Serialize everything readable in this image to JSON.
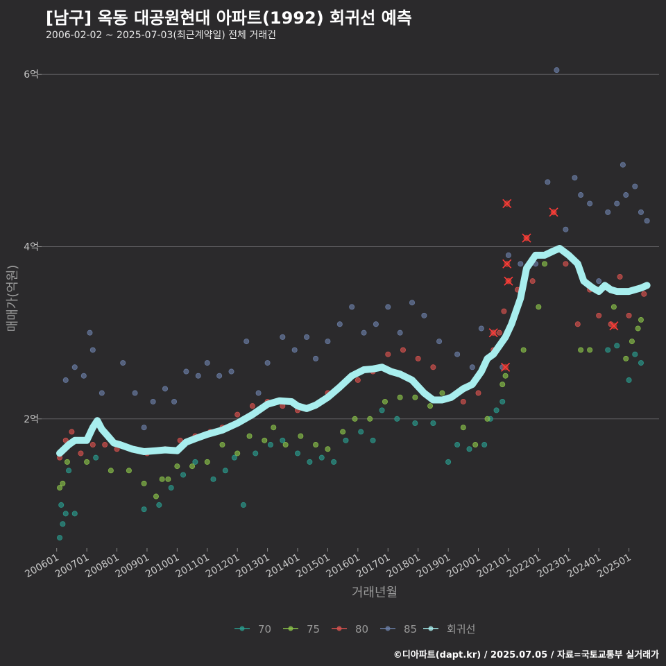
{
  "header": {
    "title": "[남구] 옥동 대공원현대 아파트(1992) 회귀선 예측",
    "subtitle": "2006-02-02 ~ 2025-07-03(최근계약일) 전체 거래건"
  },
  "credit": "©디아파트(dapt.kr) / 2025.07.05 / 자료=국토교통부 실거래가",
  "chart_data": {
    "type": "scatter",
    "xlabel": "거래년월",
    "ylabel": "매매가(억원)",
    "x_tick_labels": [
      "200601",
      "200701",
      "200801",
      "200901",
      "201001",
      "201101",
      "201201",
      "201301",
      "201401",
      "201501",
      "201601",
      "201701",
      "201801",
      "201901",
      "202001",
      "202101",
      "202201",
      "202301",
      "202401",
      "202501"
    ],
    "y_ticks": [
      {
        "value": 2,
        "label": "2억"
      },
      {
        "value": 4,
        "label": "4억"
      },
      {
        "value": 6,
        "label": "6억"
      }
    ],
    "ylim": [
      0.5,
      6.3
    ],
    "xlim": [
      2005.5,
      2026.0
    ],
    "grid": "horizontal",
    "legend_position": "bottom",
    "colors": {
      "70": "#2a9d8f",
      "75": "#8bc34a",
      "80": "#d9534f",
      "85": "#6b7fa8",
      "trend": "#a8eeee"
    },
    "series": [
      {
        "name": "70",
        "color": "#2a9d8f",
        "points": [
          [
            2006.1,
            0.62
          ],
          [
            2006.15,
            1.0
          ],
          [
            2006.2,
            0.78
          ],
          [
            2006.3,
            0.9
          ],
          [
            2006.4,
            1.4
          ],
          [
            2006.6,
            0.9
          ],
          [
            2007.3,
            1.55
          ],
          [
            2008.9,
            0.95
          ],
          [
            2009.4,
            1.0
          ],
          [
            2009.8,
            1.2
          ],
          [
            2010.2,
            1.35
          ],
          [
            2010.6,
            1.5
          ],
          [
            2011.2,
            1.3
          ],
          [
            2011.6,
            1.4
          ],
          [
            2011.9,
            1.55
          ],
          [
            2012.2,
            1.0
          ],
          [
            2012.6,
            1.6
          ],
          [
            2013.1,
            1.7
          ],
          [
            2013.5,
            1.75
          ],
          [
            2014.0,
            1.6
          ],
          [
            2014.4,
            1.5
          ],
          [
            2014.8,
            1.55
          ],
          [
            2015.2,
            1.5
          ],
          [
            2015.6,
            1.75
          ],
          [
            2016.1,
            1.85
          ],
          [
            2016.5,
            1.75
          ],
          [
            2016.8,
            2.1
          ],
          [
            2017.3,
            2.0
          ],
          [
            2017.9,
            1.95
          ],
          [
            2018.5,
            1.95
          ],
          [
            2019.0,
            1.5
          ],
          [
            2019.3,
            1.7
          ],
          [
            2019.7,
            1.65
          ],
          [
            2020.2,
            1.7
          ],
          [
            2020.4,
            2.0
          ],
          [
            2020.6,
            2.1
          ],
          [
            2020.8,
            2.2
          ],
          [
            2024.3,
            2.8
          ],
          [
            2024.6,
            2.85
          ],
          [
            2025.0,
            2.45
          ],
          [
            2025.2,
            2.75
          ],
          [
            2025.4,
            2.65
          ]
        ]
      },
      {
        "name": "75",
        "color": "#8bc34a",
        "points": [
          [
            2006.1,
            1.2
          ],
          [
            2006.2,
            1.25
          ],
          [
            2006.35,
            1.5
          ],
          [
            2007.0,
            1.5
          ],
          [
            2007.8,
            1.4
          ],
          [
            2008.4,
            1.4
          ],
          [
            2008.9,
            1.25
          ],
          [
            2009.3,
            1.1
          ],
          [
            2009.5,
            1.3
          ],
          [
            2009.7,
            1.3
          ],
          [
            2010.0,
            1.45
          ],
          [
            2010.5,
            1.45
          ],
          [
            2011.0,
            1.5
          ],
          [
            2011.5,
            1.7
          ],
          [
            2012.0,
            1.6
          ],
          [
            2012.4,
            1.8
          ],
          [
            2012.9,
            1.75
          ],
          [
            2013.2,
            1.9
          ],
          [
            2013.6,
            1.7
          ],
          [
            2014.1,
            1.8
          ],
          [
            2014.6,
            1.7
          ],
          [
            2015.0,
            1.65
          ],
          [
            2015.5,
            1.85
          ],
          [
            2015.9,
            2.0
          ],
          [
            2016.4,
            2.0
          ],
          [
            2016.9,
            2.2
          ],
          [
            2017.4,
            2.25
          ],
          [
            2017.9,
            2.25
          ],
          [
            2018.4,
            2.15
          ],
          [
            2018.8,
            2.3
          ],
          [
            2019.5,
            1.9
          ],
          [
            2019.9,
            1.7
          ],
          [
            2020.3,
            2.0
          ],
          [
            2020.8,
            2.4
          ],
          [
            2020.9,
            2.5
          ],
          [
            2021.5,
            2.8
          ],
          [
            2022.0,
            3.3
          ],
          [
            2022.2,
            3.8
          ],
          [
            2023.4,
            2.8
          ],
          [
            2023.7,
            2.8
          ],
          [
            2024.5,
            3.3
          ],
          [
            2024.9,
            2.7
          ],
          [
            2025.1,
            2.9
          ],
          [
            2025.3,
            3.05
          ],
          [
            2025.4,
            3.15
          ]
        ]
      },
      {
        "name": "80",
        "color": "#d9534f",
        "points": [
          [
            2006.1,
            1.55
          ],
          [
            2006.3,
            1.75
          ],
          [
            2006.5,
            1.85
          ],
          [
            2006.8,
            1.6
          ],
          [
            2007.2,
            1.7
          ],
          [
            2007.6,
            1.7
          ],
          [
            2008.0,
            1.65
          ],
          [
            2008.5,
            1.65
          ],
          [
            2009.0,
            1.6
          ],
          [
            2009.6,
            1.65
          ],
          [
            2010.1,
            1.75
          ],
          [
            2010.6,
            1.8
          ],
          [
            2011.1,
            1.85
          ],
          [
            2011.5,
            1.9
          ],
          [
            2012.0,
            2.05
          ],
          [
            2012.5,
            2.15
          ],
          [
            2013.0,
            2.2
          ],
          [
            2013.5,
            2.15
          ],
          [
            2014.0,
            2.1
          ],
          [
            2014.5,
            2.15
          ],
          [
            2015.0,
            2.3
          ],
          [
            2015.5,
            2.4
          ],
          [
            2016.0,
            2.45
          ],
          [
            2016.5,
            2.55
          ],
          [
            2017.0,
            2.75
          ],
          [
            2017.5,
            2.8
          ],
          [
            2018.0,
            2.7
          ],
          [
            2018.5,
            2.6
          ],
          [
            2019.0,
            2.25
          ],
          [
            2019.5,
            2.2
          ],
          [
            2020.0,
            2.3
          ],
          [
            2020.5,
            2.8
          ],
          [
            2020.7,
            3.0
          ],
          [
            2020.85,
            3.25
          ],
          [
            2021.0,
            3.6
          ],
          [
            2021.3,
            3.5
          ],
          [
            2021.6,
            4.1
          ],
          [
            2021.8,
            3.6
          ],
          [
            2022.5,
            4.4
          ],
          [
            2022.9,
            3.8
          ],
          [
            2023.3,
            3.1
          ],
          [
            2023.7,
            3.5
          ],
          [
            2024.0,
            3.2
          ],
          [
            2024.4,
            3.1
          ],
          [
            2024.7,
            3.65
          ],
          [
            2025.0,
            3.2
          ],
          [
            2025.5,
            3.45
          ]
        ]
      },
      {
        "name": "85",
        "color": "#6b7fa8",
        "points": [
          [
            2006.3,
            2.45
          ],
          [
            2006.6,
            2.6
          ],
          [
            2006.9,
            2.5
          ],
          [
            2007.1,
            3.0
          ],
          [
            2007.2,
            2.8
          ],
          [
            2007.5,
            2.3
          ],
          [
            2008.2,
            2.65
          ],
          [
            2008.6,
            2.3
          ],
          [
            2008.9,
            1.9
          ],
          [
            2009.2,
            2.2
          ],
          [
            2009.6,
            2.35
          ],
          [
            2009.9,
            2.2
          ],
          [
            2010.3,
            2.55
          ],
          [
            2010.7,
            2.5
          ],
          [
            2011.0,
            2.65
          ],
          [
            2011.4,
            2.5
          ],
          [
            2011.8,
            2.55
          ],
          [
            2012.3,
            2.9
          ],
          [
            2012.7,
            2.3
          ],
          [
            2013.0,
            2.65
          ],
          [
            2013.5,
            2.95
          ],
          [
            2013.9,
            2.8
          ],
          [
            2014.3,
            2.95
          ],
          [
            2014.6,
            2.7
          ],
          [
            2015.0,
            2.9
          ],
          [
            2015.4,
            3.1
          ],
          [
            2015.8,
            3.3
          ],
          [
            2016.2,
            3.0
          ],
          [
            2016.6,
            3.1
          ],
          [
            2017.0,
            3.3
          ],
          [
            2017.4,
            3.0
          ],
          [
            2017.8,
            3.35
          ],
          [
            2018.2,
            3.2
          ],
          [
            2018.7,
            2.9
          ],
          [
            2019.3,
            2.75
          ],
          [
            2019.8,
            2.6
          ],
          [
            2020.1,
            3.05
          ],
          [
            2020.5,
            3.0
          ],
          [
            2020.8,
            2.6
          ],
          [
            2021.0,
            3.9
          ],
          [
            2021.4,
            3.8
          ],
          [
            2021.9,
            3.8
          ],
          [
            2022.3,
            4.75
          ],
          [
            2022.6,
            6.05
          ],
          [
            2022.9,
            4.2
          ],
          [
            2023.2,
            4.8
          ],
          [
            2023.4,
            4.6
          ],
          [
            2023.7,
            4.5
          ],
          [
            2024.0,
            3.6
          ],
          [
            2024.3,
            4.4
          ],
          [
            2024.6,
            4.5
          ],
          [
            2024.8,
            4.95
          ],
          [
            2024.9,
            4.6
          ],
          [
            2025.2,
            4.7
          ],
          [
            2025.4,
            4.4
          ],
          [
            2025.6,
            4.3
          ]
        ]
      }
    ],
    "markers_x": [
      [
        2020.5,
        3.0
      ],
      [
        2020.9,
        2.6
      ],
      [
        2021.0,
        3.6
      ],
      [
        2020.95,
        4.5
      ],
      [
        2021.6,
        4.1
      ],
      [
        2022.5,
        4.4
      ],
      [
        2024.5,
        3.08
      ],
      [
        2020.95,
        3.8
      ]
    ],
    "trend": {
      "name": "회귀선",
      "x": [
        2006.1,
        2006.4,
        2006.6,
        2007.0,
        2007.2,
        2007.35,
        2007.5,
        2007.7,
        2007.9,
        2008.1,
        2008.5,
        2008.9,
        2009.3,
        2009.6,
        2010.0,
        2010.3,
        2010.6,
        2011.0,
        2011.5,
        2012.0,
        2012.5,
        2013.0,
        2013.4,
        2013.8,
        2014.0,
        2014.3,
        2014.6,
        2015.0,
        2015.4,
        2015.8,
        2016.2,
        2016.5,
        2016.8,
        2017.1,
        2017.4,
        2017.8,
        2018.2,
        2018.5,
        2018.8,
        2019.1,
        2019.5,
        2019.8,
        2020.1,
        2020.3,
        2020.5,
        2020.7,
        2020.9,
        2021.1,
        2021.4,
        2021.6,
        2021.9,
        2022.2,
        2022.5,
        2022.7,
        2023.0,
        2023.3,
        2023.5,
        2023.8,
        2024.0,
        2024.2,
        2024.4,
        2024.6,
        2024.8,
        2025.0,
        2025.2,
        2025.4,
        2025.6
      ],
      "y": [
        1.6,
        1.7,
        1.75,
        1.75,
        1.9,
        1.98,
        1.88,
        1.8,
        1.72,
        1.7,
        1.65,
        1.62,
        1.63,
        1.64,
        1.63,
        1.73,
        1.77,
        1.82,
        1.87,
        1.95,
        2.05,
        2.17,
        2.21,
        2.2,
        2.15,
        2.12,
        2.16,
        2.25,
        2.37,
        2.5,
        2.57,
        2.58,
        2.6,
        2.55,
        2.52,
        2.45,
        2.3,
        2.22,
        2.22,
        2.25,
        2.35,
        2.4,
        2.55,
        2.7,
        2.75,
        2.85,
        2.95,
        3.1,
        3.4,
        3.75,
        3.9,
        3.9,
        3.95,
        3.98,
        3.9,
        3.8,
        3.6,
        3.52,
        3.48,
        3.55,
        3.5,
        3.48,
        3.48,
        3.48,
        3.5,
        3.52,
        3.55
      ]
    },
    "legend": [
      "70",
      "75",
      "80",
      "85",
      "회귀선"
    ]
  }
}
